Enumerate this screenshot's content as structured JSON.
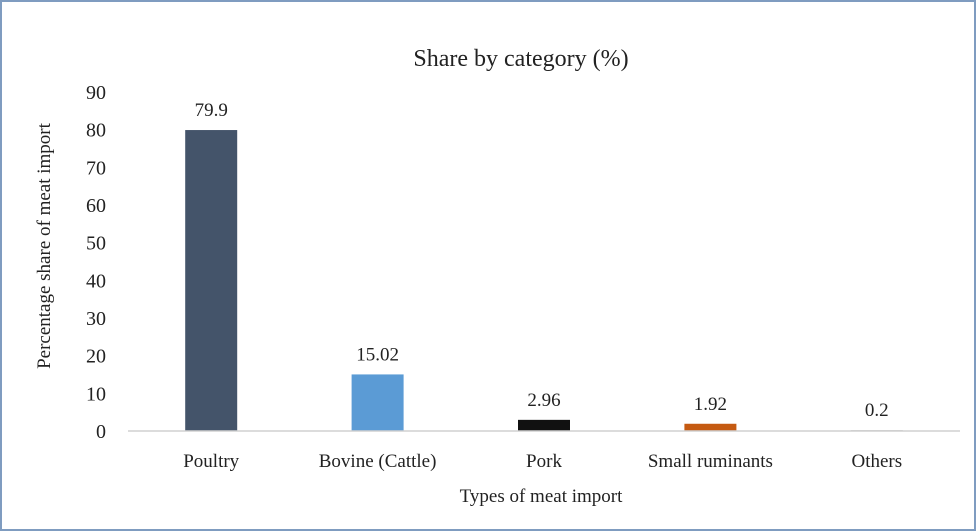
{
  "chart_data": {
    "type": "bar",
    "title": "Share by category (%)",
    "xlabel": "Types of meat import",
    "ylabel": "Percentage share of meat  import",
    "categories": [
      "Poultry",
      "Bovine (Cattle)",
      "Pork",
      "Small ruminants",
      "Others"
    ],
    "values": [
      79.9,
      15.02,
      2.96,
      1.92,
      0.2
    ],
    "data_labels": [
      "79.9",
      "15.02",
      "2.96",
      "1.92",
      "0.2"
    ],
    "bar_colors": [
      "#44546a",
      "#5b9bd5",
      "#111111",
      "#c55a11",
      "#a5a5a5"
    ],
    "ylim": [
      0,
      90
    ],
    "yticks": [
      "0",
      "10",
      "20",
      "30",
      "40",
      "50",
      "60",
      "70",
      "80",
      "90"
    ],
    "grid": false,
    "legend": "none"
  }
}
